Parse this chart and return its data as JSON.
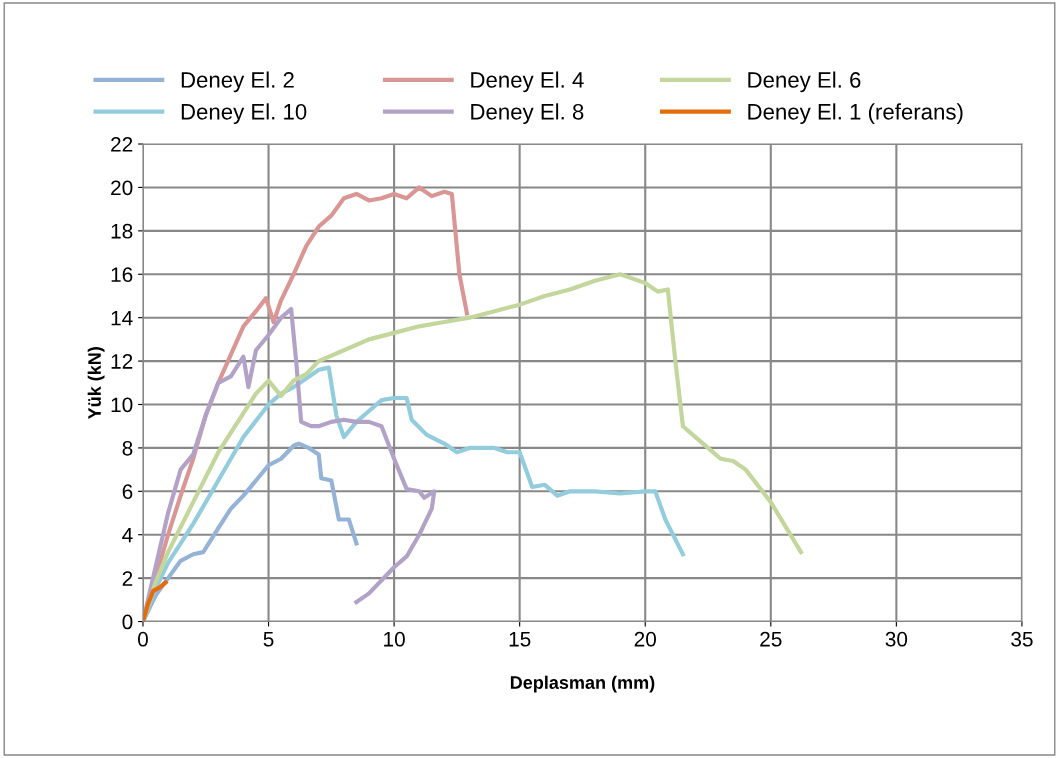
{
  "chart_data": {
    "type": "line",
    "xlabel": "Deplasman (mm)",
    "ylabel": "Yük (kN)",
    "xlim": [
      0,
      35
    ],
    "xticks": [
      0,
      5,
      10,
      15,
      20,
      25,
      30,
      35
    ],
    "ylim": [
      0,
      22
    ],
    "yticks": [
      0,
      2,
      4,
      6,
      8,
      10,
      12,
      14,
      16,
      18,
      20,
      22
    ],
    "grid": true,
    "legend": "top",
    "marker": "none",
    "line_style": "solid",
    "series": [
      {
        "name": "Deney El. 2",
        "color": "#95b3d7",
        "x": [
          0,
          0.5,
          1,
          1.5,
          2,
          2.4,
          3,
          3.5,
          4,
          4.5,
          5,
          5.5,
          6,
          6.2,
          6.6,
          7,
          7.1,
          7.5,
          7.8,
          8.2,
          8.5
        ],
        "values": [
          0,
          1.2,
          2,
          2.8,
          3.1,
          3.2,
          4.3,
          5.2,
          5.8,
          6.5,
          7.2,
          7.5,
          8.1,
          8.2,
          8,
          7.7,
          6.6,
          6.5,
          4.7,
          4.7,
          3.6
        ]
      },
      {
        "name": "Deney El. 10",
        "color": "#93cddd",
        "x": [
          0,
          0.5,
          1,
          2,
          3,
          4,
          5,
          5.5,
          6,
          6.5,
          7,
          7.4,
          7.7,
          8,
          8.5,
          9,
          9.5,
          10,
          10.5,
          10.7,
          11.3,
          12,
          12.5,
          13,
          14,
          14.5,
          15,
          15.5,
          16,
          16.5,
          17,
          18,
          19,
          20,
          20.4,
          20.8,
          21.5
        ],
        "values": [
          0,
          1.5,
          2.7,
          4.5,
          6.5,
          8.5,
          10,
          10.5,
          10.8,
          11.2,
          11.6,
          11.7,
          9.5,
          8.5,
          9.2,
          9.7,
          10.2,
          10.3,
          10.3,
          9.3,
          8.6,
          8.2,
          7.8,
          8,
          8,
          7.8,
          7.8,
          6.2,
          6.3,
          5.8,
          6,
          6,
          5.9,
          6,
          6,
          4.7,
          3.1
        ]
      },
      {
        "name": "Deney El. 4",
        "color": "#d99694",
        "x": [
          0,
          0.5,
          1,
          1.5,
          2,
          2.5,
          3,
          3.5,
          4,
          4.5,
          4.9,
          5.2,
          5.5,
          6,
          6.5,
          7,
          7.5,
          8,
          8.5,
          9,
          9.5,
          10,
          10.5,
          11,
          11.5,
          12,
          12.3,
          12.6,
          12.9
        ],
        "values": [
          0,
          2,
          4,
          5.8,
          7.5,
          9.5,
          11,
          12.3,
          13.6,
          14.3,
          14.9,
          13.8,
          14.8,
          16,
          17.3,
          18.2,
          18.7,
          19.5,
          19.7,
          19.4,
          19.5,
          19.7,
          19.5,
          20,
          19.6,
          19.8,
          19.7,
          16,
          14.2
        ]
      },
      {
        "name": "Deney El. 8",
        "color": "#b3a2c7",
        "x": [
          0,
          0.5,
          1,
          1.5,
          2,
          2.5,
          3,
          3.5,
          4,
          4.2,
          4.5,
          5,
          5.5,
          5.9,
          6.1,
          6.3,
          6.7,
          7,
          7.5,
          8,
          8.5,
          9,
          9.5,
          10,
          10.5,
          11,
          11.2,
          11.6,
          11.5,
          11,
          10.5,
          10,
          9,
          8.5
        ],
        "values": [
          0,
          2.5,
          5,
          7,
          7.7,
          9.5,
          11,
          11.3,
          12.2,
          10.8,
          12.5,
          13.2,
          14,
          14.4,
          12,
          9.2,
          9,
          9,
          9.2,
          9.3,
          9.2,
          9.2,
          9,
          7.5,
          6.1,
          6,
          5.7,
          6,
          5.2,
          4,
          3,
          2.5,
          1.3,
          0.9
        ]
      },
      {
        "name": "Deney El. 6",
        "color": "#c3d69b",
        "x": [
          0,
          0.5,
          1,
          2,
          3,
          4,
          4.5,
          5,
          5.5,
          6,
          6.5,
          7,
          8,
          9,
          10,
          11,
          12,
          13,
          14,
          15,
          16,
          17,
          18,
          19,
          19.5,
          20,
          20.5,
          20.9,
          21.2,
          21.5,
          22,
          22.5,
          23,
          23.5,
          24,
          25,
          26.2
        ],
        "values": [
          0,
          1.8,
          3.2,
          5.5,
          7.8,
          9.6,
          10.5,
          11.1,
          10.4,
          11.1,
          11.4,
          12,
          12.5,
          13,
          13.3,
          13.6,
          13.8,
          14,
          14.3,
          14.6,
          15,
          15.3,
          15.7,
          16,
          15.8,
          15.6,
          15.2,
          15.3,
          12,
          9,
          8.5,
          8,
          7.5,
          7.4,
          7,
          5.5,
          3.2
        ]
      },
      {
        "name": "Deney El. 1 (referans)",
        "color": "#e46c0a",
        "x": [
          0,
          0.2,
          0.4,
          0.7,
          0.9
        ],
        "values": [
          0,
          0.8,
          1.4,
          1.6,
          1.8
        ]
      }
    ]
  }
}
